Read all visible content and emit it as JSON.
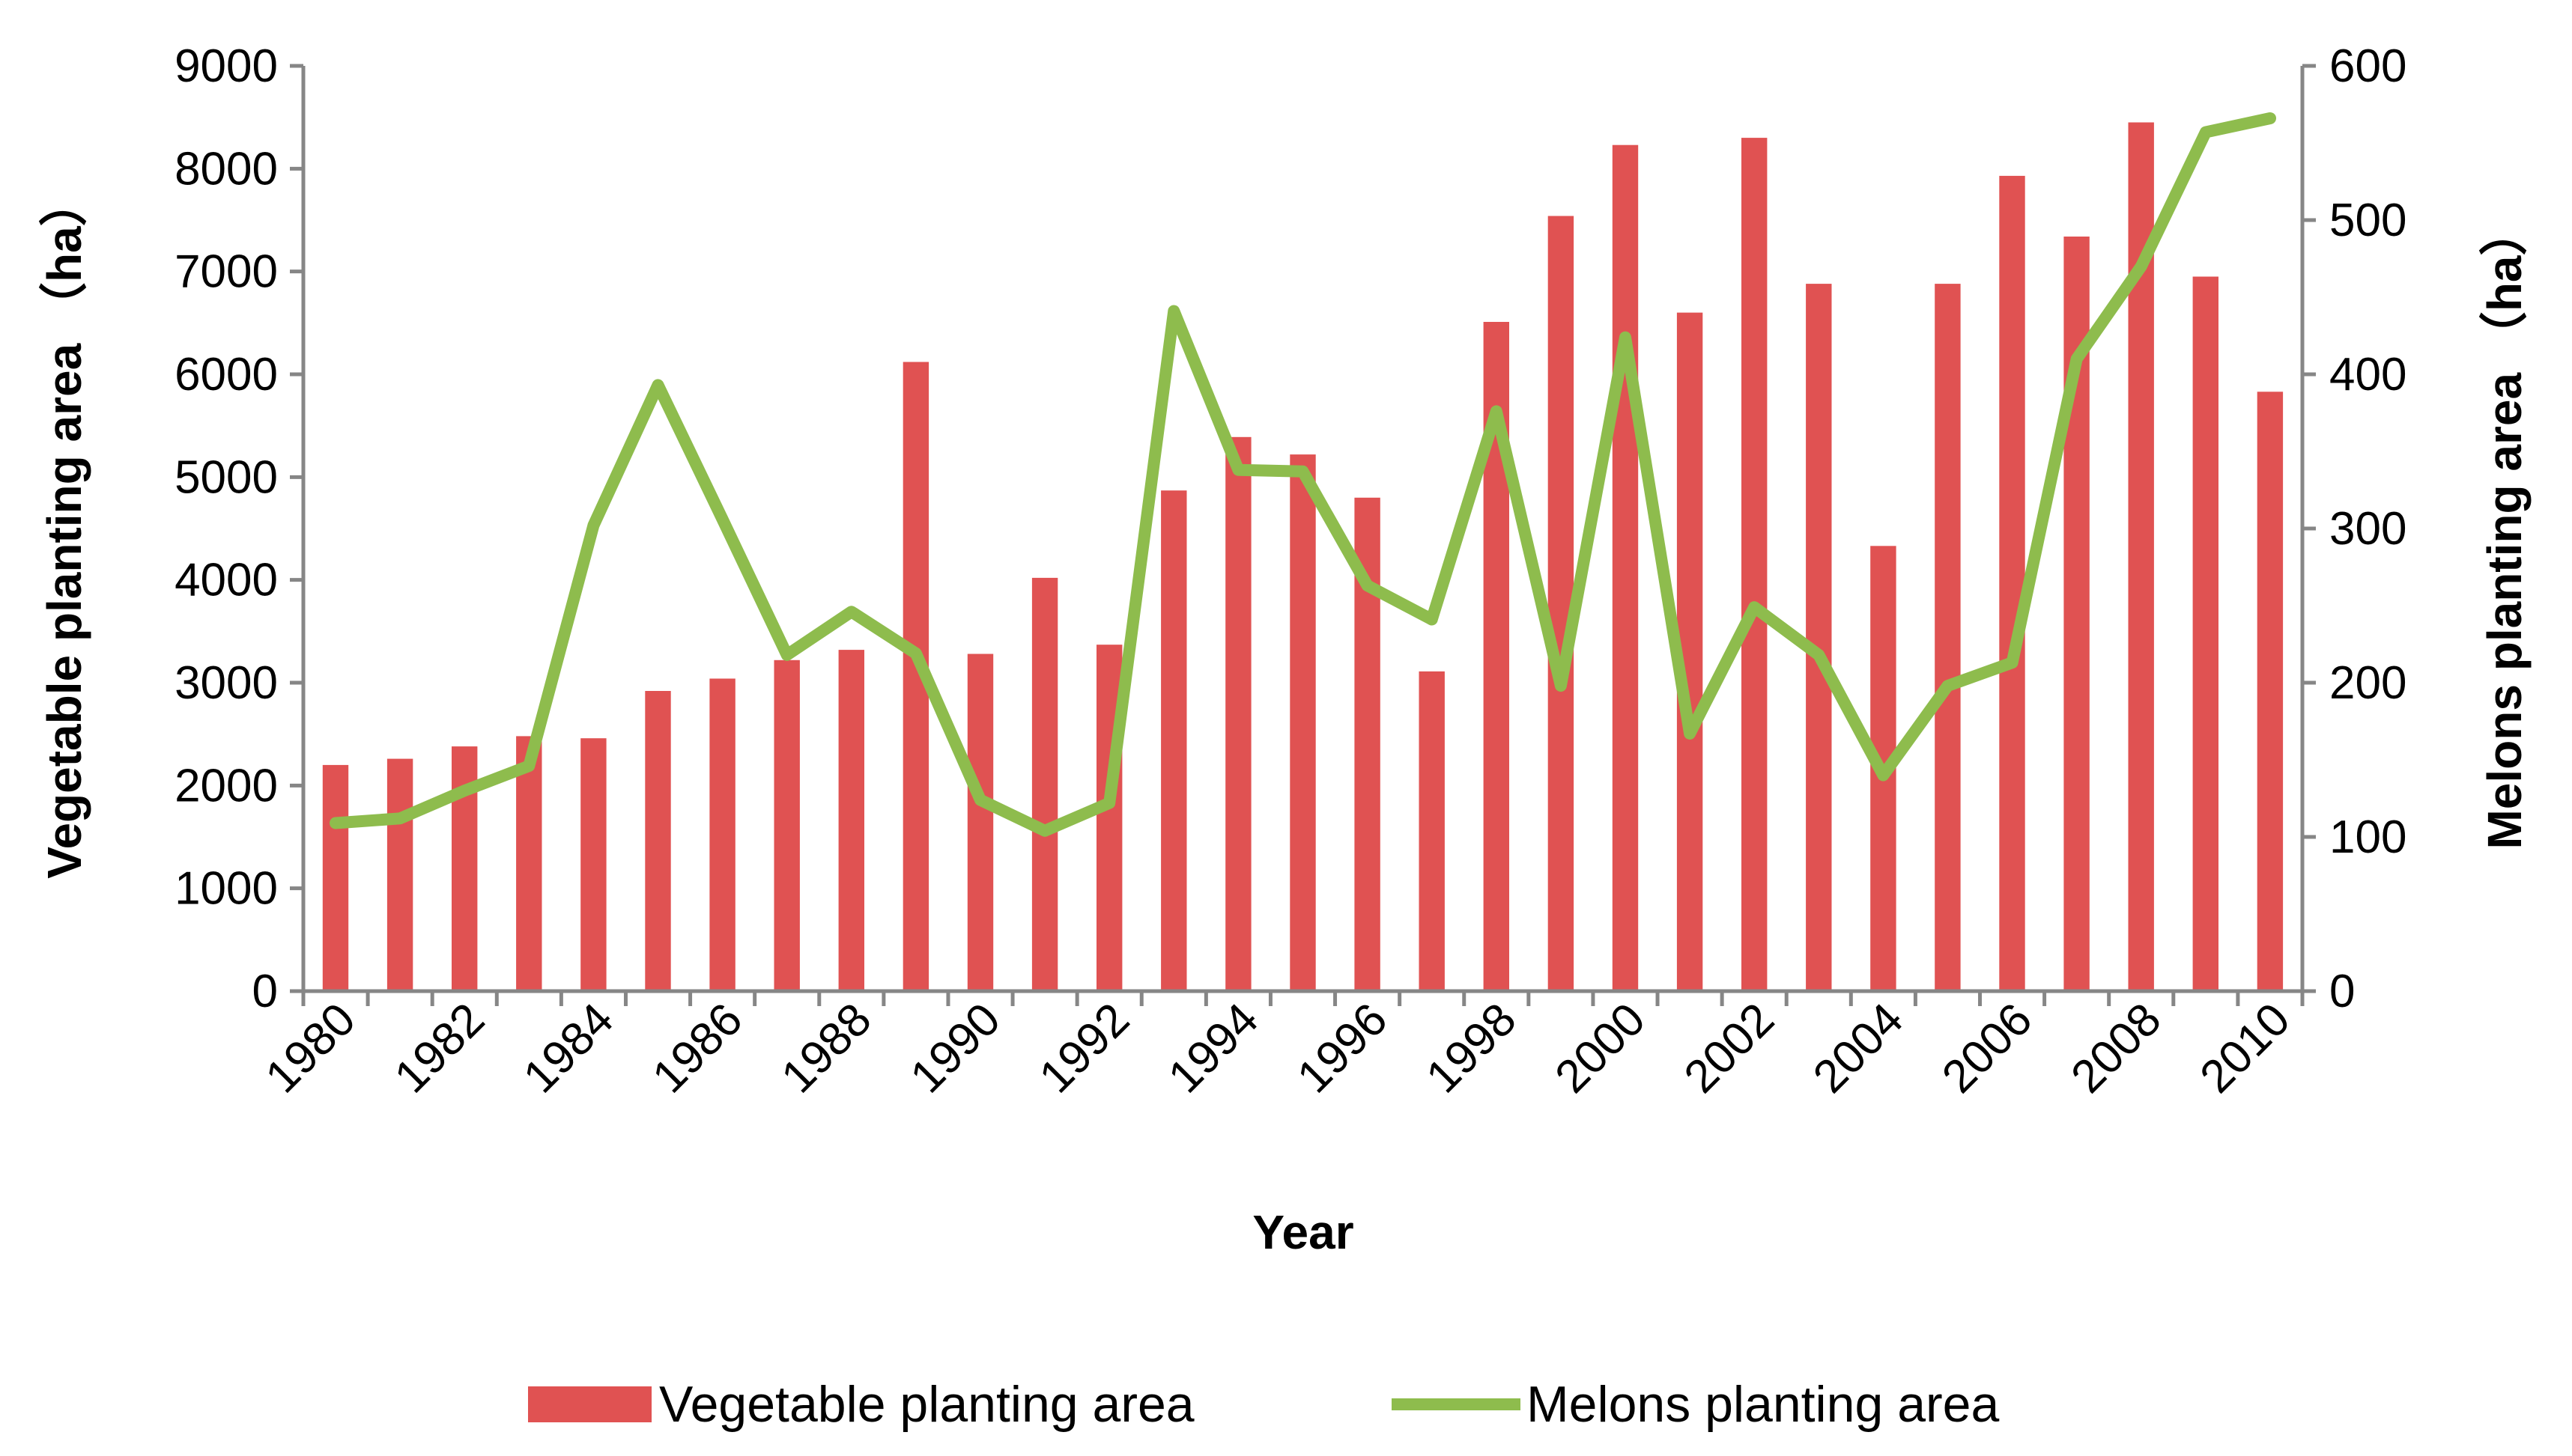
{
  "chart_data": {
    "type": "bar",
    "title": "",
    "xlabel": "Year",
    "ylabel": "Vegetable planting area （ha）",
    "y2label": "Melons planting area （ha）",
    "ylim": [
      0,
      9000
    ],
    "y2lim": [
      0,
      600
    ],
    "yticks": [
      "0",
      "1000",
      "2000",
      "3000",
      "4000",
      "5000",
      "6000",
      "7000",
      "8000",
      "9000"
    ],
    "y2ticks": [
      "0",
      "100",
      "200",
      "300",
      "400",
      "500",
      "600"
    ],
    "xtick_labels": [
      "1980",
      "1982",
      "1984",
      "1986",
      "1988",
      "1990",
      "1992",
      "1994",
      "1996",
      "1998",
      "2000",
      "2002",
      "2004",
      "2006",
      "2008",
      "2010"
    ],
    "categories": [
      1980,
      1981,
      1982,
      1983,
      1984,
      1985,
      1986,
      1987,
      1988,
      1989,
      1990,
      1991,
      1992,
      1993,
      1994,
      1995,
      1996,
      1997,
      1998,
      1999,
      2000,
      2001,
      2002,
      2003,
      2004,
      2005,
      2006,
      2007,
      2008,
      2009,
      2010
    ],
    "series": [
      {
        "name": "Vegetable planting area",
        "type": "bar",
        "axis": "left",
        "color": "#e05252",
        "values": [
          2200,
          2260,
          2380,
          2480,
          2460,
          2920,
          3040,
          3220,
          3320,
          6120,
          3280,
          4020,
          3370,
          4870,
          5390,
          5220,
          4800,
          3110,
          6510,
          7540,
          8230,
          6600,
          8300,
          6880,
          4330,
          6880,
          7930,
          7340,
          8450,
          6950,
          5830
        ]
      },
      {
        "name": "Melons planting area",
        "type": "line",
        "axis": "right",
        "color": "#8ebc4d",
        "values": [
          109,
          112,
          130,
          146,
          302,
          393,
          306,
          218,
          246,
          219,
          124,
          104,
          122,
          441,
          338,
          337,
          263,
          241,
          376,
          198,
          424,
          167,
          249,
          218,
          140,
          198,
          213,
          410,
          470,
          557,
          566
        ]
      }
    ],
    "legend_position": "bottom"
  }
}
